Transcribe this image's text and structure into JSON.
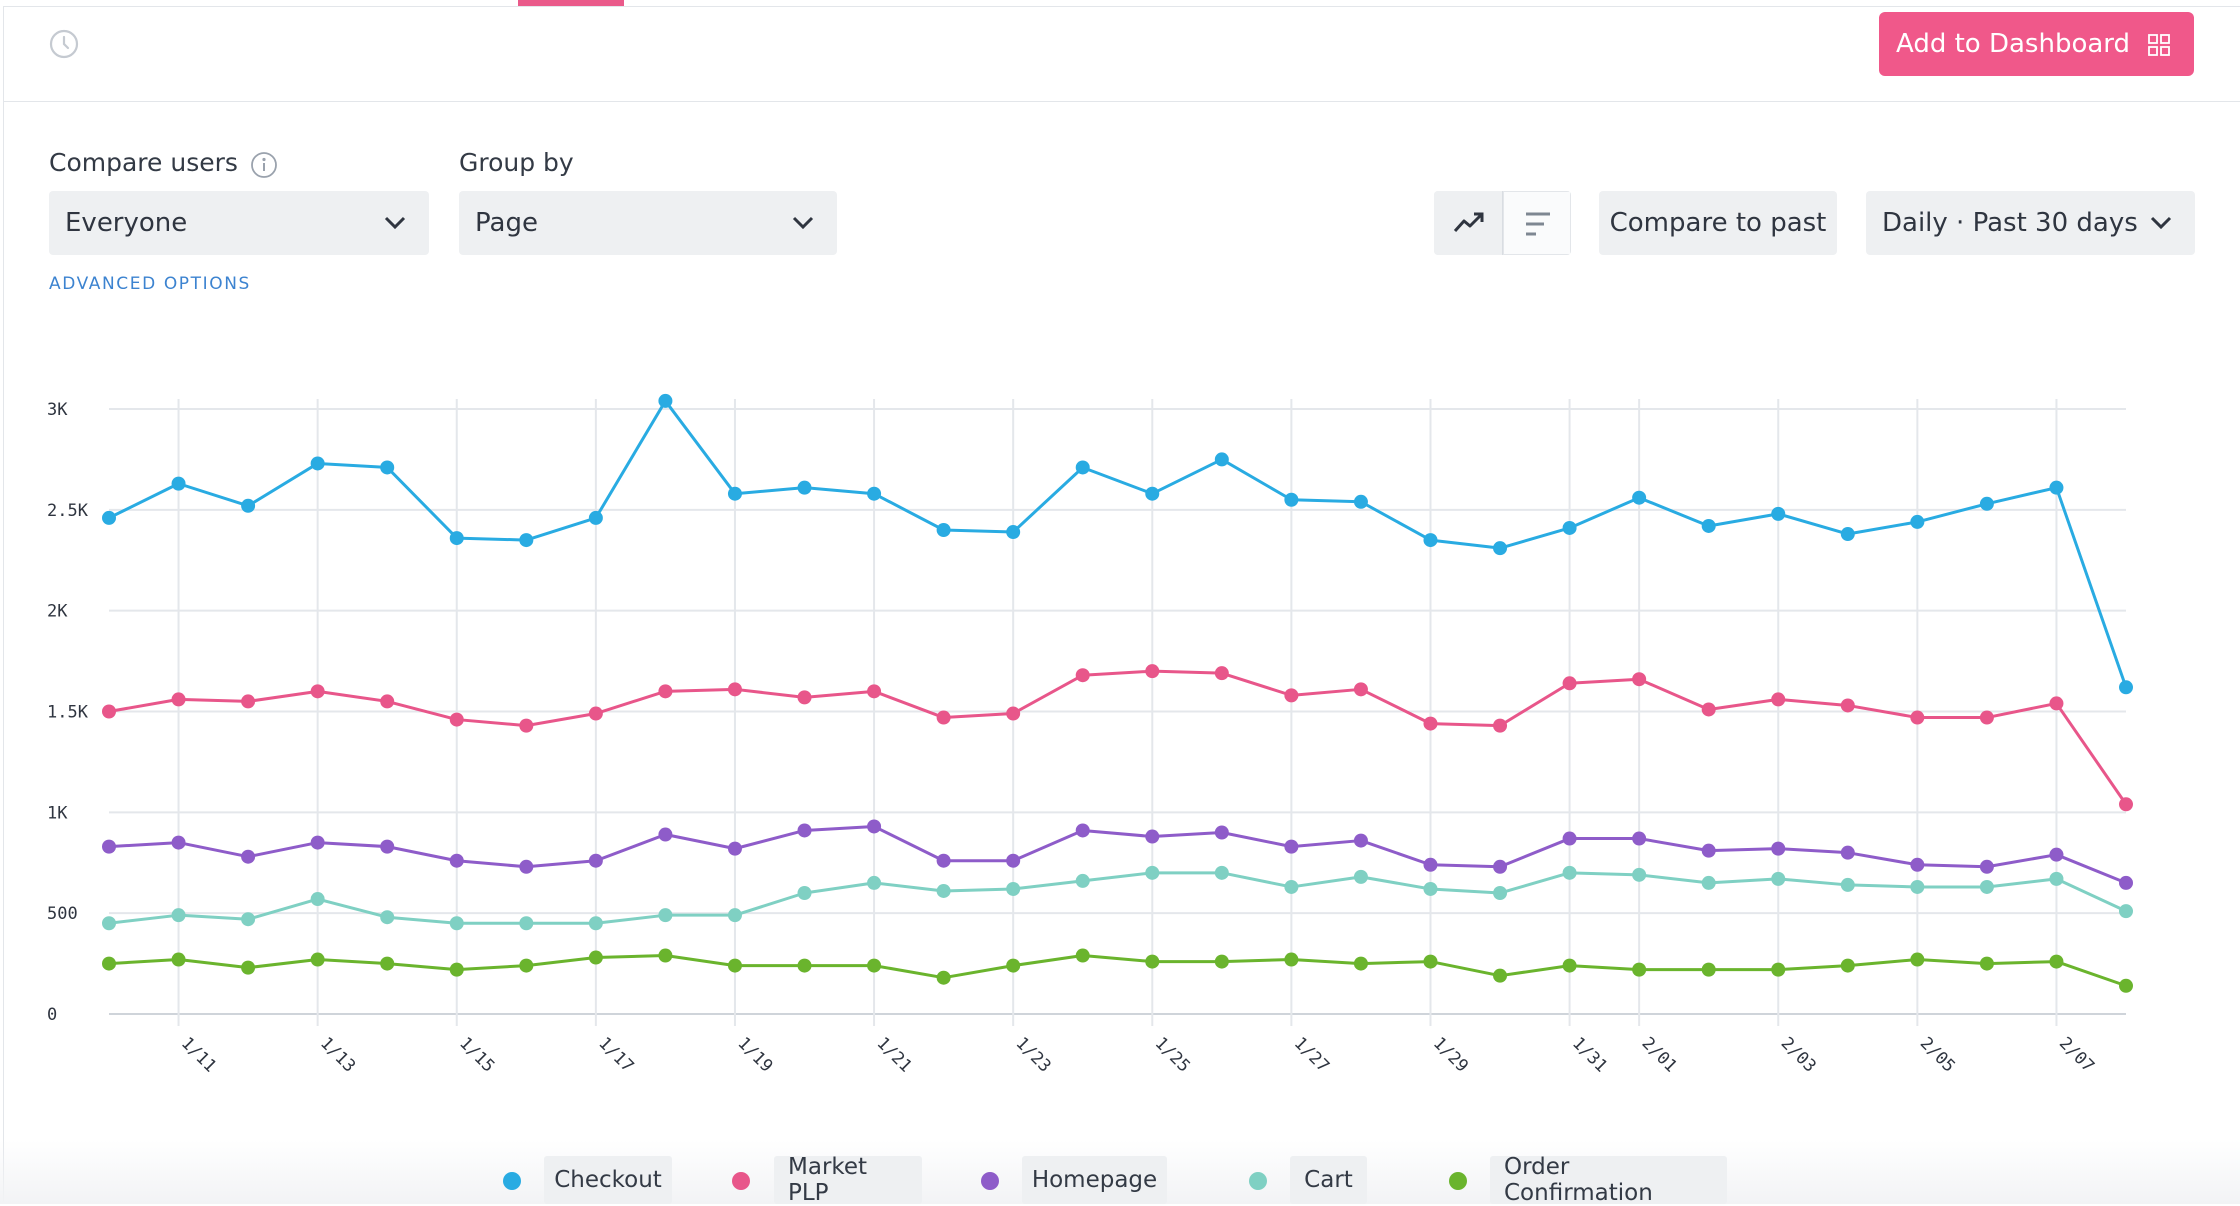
{
  "header": {
    "add_to_dashboard_label": "Add to Dashboard"
  },
  "controls": {
    "compare_users_label": "Compare users",
    "compare_users_value": "Everyone",
    "group_by_label": "Group by",
    "group_by_value": "Page",
    "advanced_options_label": "ADVANCED OPTIONS",
    "compare_to_past_label": "Compare to past",
    "date_range_value": "Daily · Past 30 days"
  },
  "legend": [
    {
      "label": "Checkout",
      "color": "#29abe2"
    },
    {
      "label": "Market PLP",
      "color": "#e8568a"
    },
    {
      "label": "Homepage",
      "color": "#8e5cc9"
    },
    {
      "label": "Cart",
      "color": "#7fd0c3"
    },
    {
      "label": "Order Confirmation",
      "color": "#6ab42d"
    }
  ],
  "chart_data": {
    "type": "line",
    "x": [
      "1/10",
      "1/11",
      "1/12",
      "1/13",
      "1/14",
      "1/15",
      "1/16",
      "1/17",
      "1/18",
      "1/19",
      "1/20",
      "1/21",
      "1/22",
      "1/23",
      "1/24",
      "1/25",
      "1/26",
      "1/27",
      "1/28",
      "1/29",
      "1/30",
      "1/31",
      "2/01",
      "2/02",
      "2/03",
      "2/04",
      "2/05",
      "2/06",
      "2/07",
      "2/08"
    ],
    "x_tick_labels": [
      "1/11",
      "1/13",
      "1/15",
      "1/17",
      "1/19",
      "1/21",
      "1/23",
      "1/25",
      "1/27",
      "1/29",
      "1/31",
      "2/01",
      "2/03",
      "2/05",
      "2/07"
    ],
    "y_ticks": [
      "0",
      "500",
      "1K",
      "1.5K",
      "2K",
      "2.5K",
      "3K"
    ],
    "ylim": [
      0,
      3000
    ],
    "grid": true,
    "legend_position": "bottom",
    "series": [
      {
        "name": "Checkout",
        "color": "#29abe2",
        "values": [
          2460,
          2630,
          2520,
          2730,
          2710,
          2360,
          2350,
          2460,
          3040,
          2580,
          2610,
          2580,
          2400,
          2390,
          2710,
          2580,
          2750,
          2550,
          2540,
          2350,
          2310,
          2410,
          2560,
          2420,
          2480,
          2380,
          2440,
          2530,
          2610,
          1620
        ]
      },
      {
        "name": "Market PLP",
        "color": "#e8568a",
        "values": [
          1500,
          1560,
          1550,
          1600,
          1550,
          1460,
          1430,
          1490,
          1600,
          1610,
          1570,
          1600,
          1470,
          1490,
          1680,
          1700,
          1690,
          1580,
          1610,
          1440,
          1430,
          1640,
          1660,
          1510,
          1560,
          1530,
          1470,
          1470,
          1540,
          1040
        ]
      },
      {
        "name": "Homepage",
        "color": "#8e5cc9",
        "values": [
          830,
          850,
          780,
          850,
          830,
          760,
          730,
          760,
          890,
          820,
          910,
          930,
          760,
          760,
          910,
          880,
          900,
          830,
          860,
          740,
          730,
          870,
          870,
          810,
          820,
          800,
          740,
          730,
          790,
          650
        ]
      },
      {
        "name": "Cart",
        "color": "#7fd0c3",
        "values": [
          450,
          490,
          470,
          570,
          480,
          450,
          450,
          450,
          490,
          490,
          600,
          650,
          610,
          620,
          660,
          700,
          700,
          630,
          680,
          620,
          600,
          700,
          690,
          650,
          670,
          640,
          630,
          630,
          670,
          510
        ]
      },
      {
        "name": "Order Confirmation",
        "color": "#6ab42d",
        "values": [
          250,
          270,
          230,
          270,
          250,
          220,
          240,
          280,
          290,
          240,
          240,
          240,
          180,
          240,
          290,
          260,
          260,
          270,
          250,
          260,
          190,
          240,
          220,
          220,
          220,
          240,
          270,
          250,
          260,
          140
        ]
      }
    ]
  }
}
